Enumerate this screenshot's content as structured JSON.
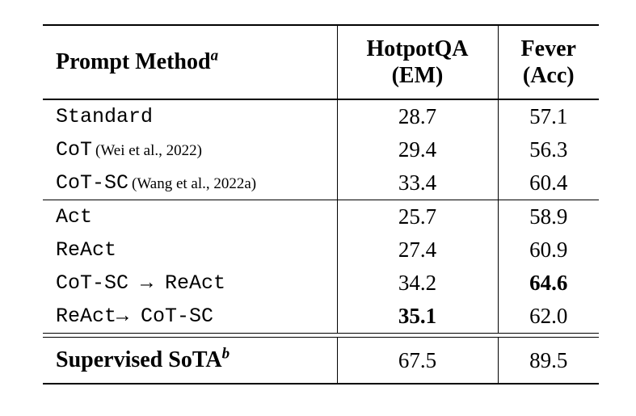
{
  "colors": {
    "background": "#ffffff",
    "text": "#000000",
    "rule": "#000000"
  },
  "table": {
    "header": {
      "method_label": "Prompt Method",
      "method_footnote_mark": "a",
      "col_hotpotqa_line1": "HotpotQA",
      "col_hotpotqa_line2": "(EM)",
      "col_fever_line1": "Fever",
      "col_fever_line2": "(Acc)"
    },
    "groups": [
      {
        "rows": [
          {
            "method": "Standard",
            "cite": "",
            "hotpotqa": "28.7",
            "fever": "57.1"
          },
          {
            "method": "CoT",
            "cite": "(Wei et al., 2022)",
            "hotpotqa": "29.4",
            "fever": "56.3"
          },
          {
            "method": "CoT-SC",
            "cite": "(Wang et al., 2022a)",
            "hotpotqa": "33.4",
            "fever": "60.4"
          }
        ]
      },
      {
        "rows": [
          {
            "method": "Act",
            "cite": "",
            "hotpotqa": "25.7",
            "fever": "58.9"
          },
          {
            "method": "ReAct",
            "cite": "",
            "hotpotqa": "27.4",
            "fever": "60.9"
          },
          {
            "method": "CoT-SC → ReAct",
            "cite": "",
            "hotpotqa": "34.2",
            "fever": "64.6"
          },
          {
            "method": "ReAct→ CoT-SC",
            "cite": "",
            "hotpotqa": "35.1",
            "fever": "62.0"
          }
        ]
      }
    ],
    "footer": {
      "method_label": "Supervised SoTA",
      "method_footnote_mark": "b",
      "hotpotqa": "67.5",
      "fever": "89.5"
    }
  }
}
